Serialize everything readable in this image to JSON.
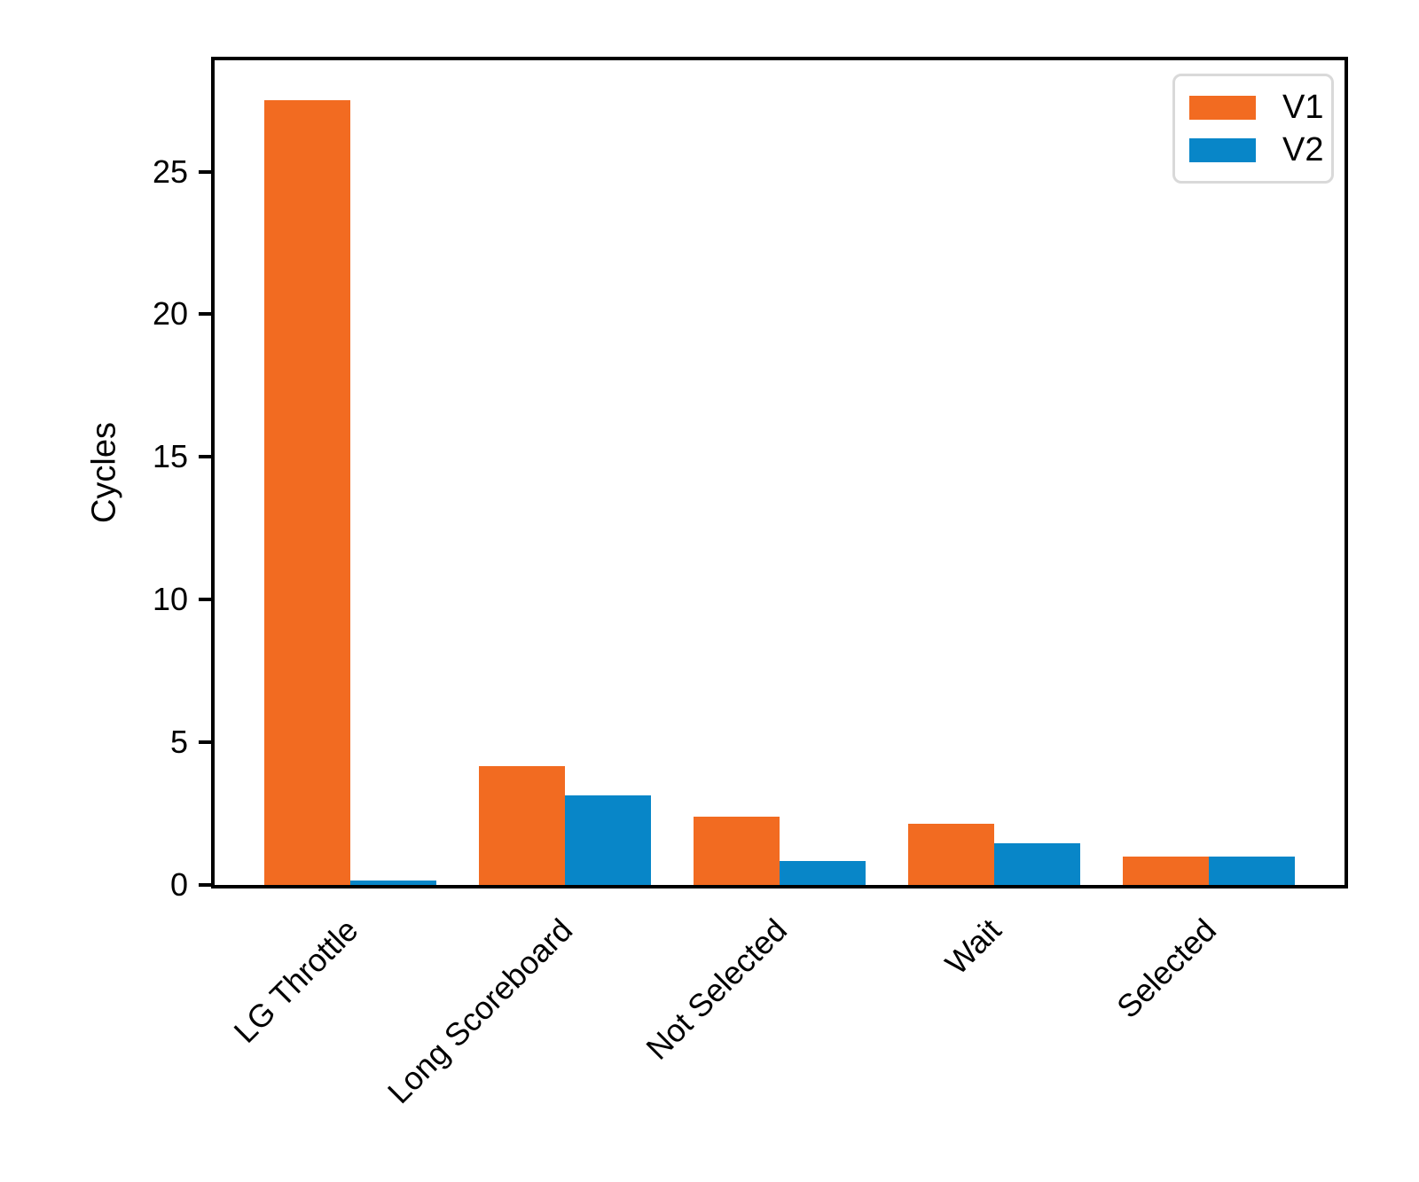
{
  "chart_data": {
    "type": "bar",
    "title": "",
    "xlabel": "",
    "ylabel": "Cycles",
    "categories": [
      "LG Throttle",
      "Long Scoreboard",
      "Not Selected",
      "Wait",
      "Selected"
    ],
    "series": [
      {
        "name": "V1",
        "color": "#F26B21",
        "values": [
          27.5,
          4.15,
          2.4,
          2.15,
          1.0
        ]
      },
      {
        "name": "V2",
        "color": "#0886C8",
        "values": [
          0.15,
          3.15,
          0.85,
          1.45,
          1.0
        ]
      }
    ],
    "yticks": [
      0,
      5,
      10,
      15,
      20,
      25
    ],
    "ylim": [
      0,
      28.9
    ],
    "grid": false,
    "legend": {
      "position": "upper-right"
    },
    "colors": {
      "axis": "#000000",
      "legend_border": "#d9d9d9",
      "background": "#ffffff"
    }
  }
}
